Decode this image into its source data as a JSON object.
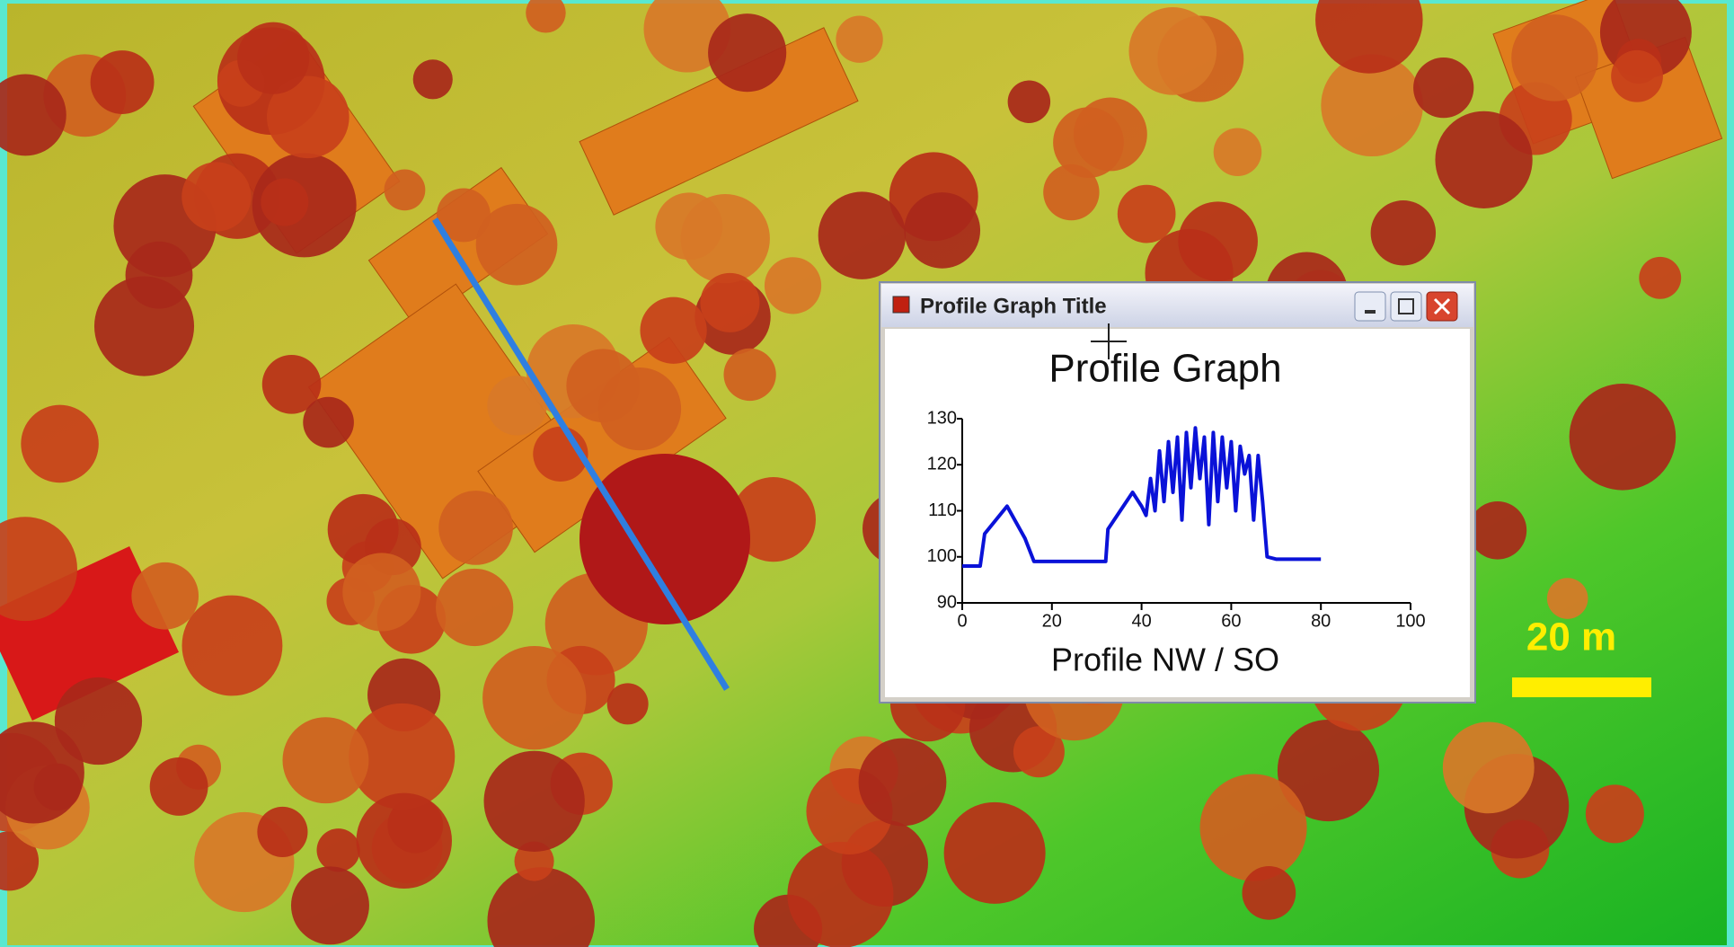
{
  "window": {
    "title": "Profile Graph Title"
  },
  "map": {
    "scale_label": "20 m"
  },
  "chart_data": {
    "type": "line",
    "title": "Profile Graph",
    "x_label": "Profile NW / SO",
    "x": [
      0,
      4,
      5,
      10,
      14,
      16,
      20,
      32,
      32.5,
      38,
      40,
      41,
      42,
      43,
      44,
      45,
      46,
      47,
      48,
      49,
      50,
      51,
      52,
      53,
      54,
      55,
      56,
      57,
      58,
      59,
      60,
      61,
      62,
      63,
      64,
      65,
      66,
      67,
      68,
      70,
      80
    ],
    "series": [
      {
        "color": "#0a12d8",
        "values": [
          98,
          98,
          105,
          111,
          104,
          99,
          99,
          99,
          106,
          114,
          111,
          109,
          117,
          110,
          123,
          112,
          125,
          114,
          126,
          108,
          127,
          115,
          128,
          117,
          126,
          107,
          127,
          112,
          126,
          115,
          125,
          110,
          124,
          118,
          122,
          108,
          122,
          112,
          100,
          99.5,
          99.5
        ]
      }
    ],
    "xlim": [
      0,
      100
    ],
    "xticks": [
      0,
      20,
      40,
      60,
      80,
      100
    ],
    "ylim": [
      90,
      130
    ],
    "yticks": [
      90,
      100,
      110,
      120,
      130
    ]
  }
}
